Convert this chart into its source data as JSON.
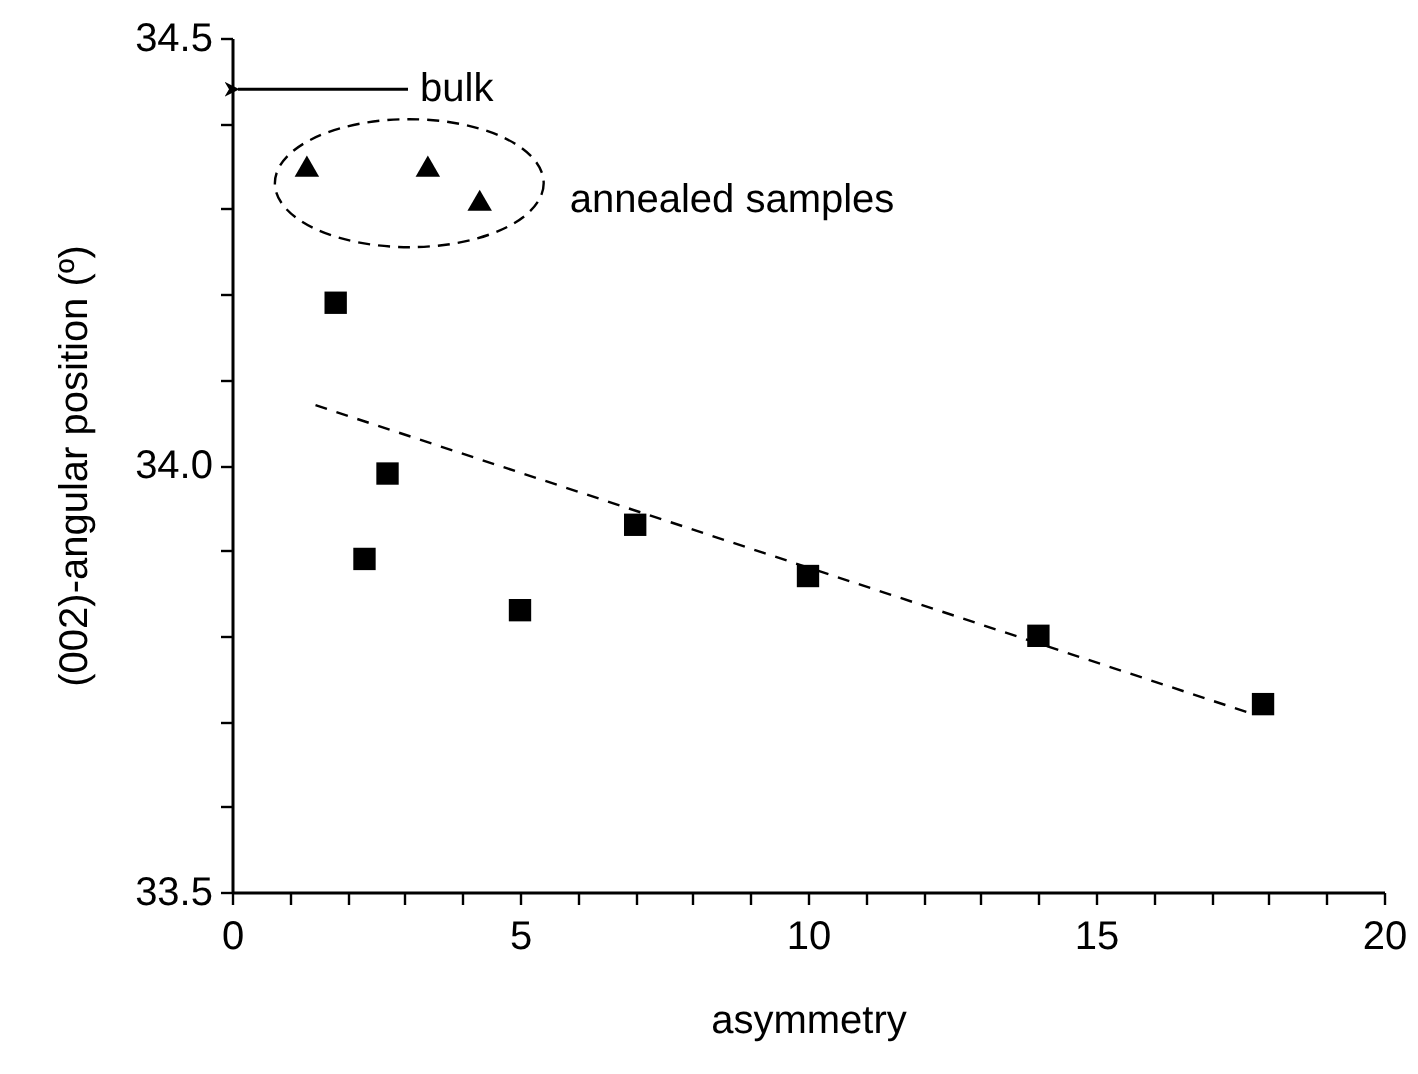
{
  "chart_data": {
    "type": "scatter",
    "xlabel": "asymmetry",
    "ylabel": "(002)-angular position (º)",
    "xlim": [
      0,
      20
    ],
    "ylim": [
      33.5,
      34.5
    ],
    "xticks": [
      0,
      {
        "value": 1,
        "label": null
      },
      {
        "value": 2,
        "label": null
      },
      {
        "value": 3,
        "label": null
      },
      {
        "value": 4,
        "label": null
      },
      5,
      {
        "value": 6,
        "label": null
      },
      {
        "value": 7,
        "label": null
      },
      {
        "value": 8,
        "label": null
      },
      {
        "value": 9,
        "label": null
      },
      10,
      {
        "value": 11,
        "label": null
      },
      {
        "value": 12,
        "label": null
      },
      {
        "value": 13,
        "label": null
      },
      {
        "value": 14,
        "label": null
      },
      15,
      {
        "value": 16,
        "label": null
      },
      {
        "value": 17,
        "label": null
      },
      {
        "value": 18,
        "label": null
      },
      {
        "value": 19,
        "label": null
      },
      20
    ],
    "yticks": [
      33.5,
      {
        "value": 33.6,
        "label": null
      },
      {
        "value": 33.7,
        "label": null
      },
      {
        "value": 33.8,
        "label": null
      },
      {
        "value": 33.9,
        "label": null
      },
      {
        "value": 34,
        "label": "34.0"
      },
      {
        "value": 34.1,
        "label": null
      },
      {
        "value": 34.2,
        "label": null
      },
      {
        "value": 34.3,
        "label": null
      },
      {
        "value": 34.4,
        "label": null
      },
      34.5
    ],
    "series": [
      {
        "color": "#000000",
        "marker": "square",
        "x": [
          1.8,
          2.7,
          2.3,
          5,
          7,
          10,
          14,
          17.9
        ],
        "values": [
          34.19,
          33.99,
          33.89,
          33.83,
          33.93,
          33.87,
          33.8,
          33.72
        ]
      },
      {
        "color": "#000000",
        "marker": "triangle",
        "x": [
          1.3,
          3.4,
          4.3
        ],
        "values": [
          34.35,
          34.35,
          34.31
        ]
      },
      {
        "type": "line",
        "color": "#000000",
        "marker": "none",
        "line_style": "dashed",
        "x": [
          1.45,
          17.65
        ],
        "values": [
          34.07,
          33.71
        ]
      }
    ],
    "ref_lines": [
      {
        "axis": "y",
        "value": 34.44,
        "label": "bulk",
        "color": "#000000"
      }
    ],
    "annotations": [
      "annealed samples"
    ]
  }
}
